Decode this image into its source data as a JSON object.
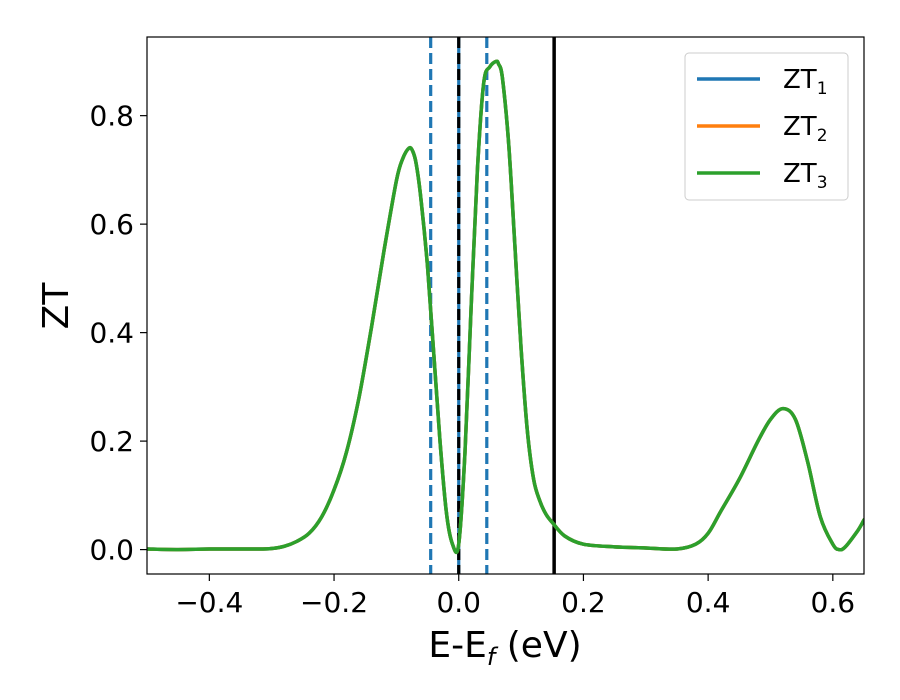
{
  "chart_data": {
    "type": "line",
    "title": "",
    "xlabel": {
      "base": "E-E",
      "sub": "f",
      "suffix": " (eV)"
    },
    "ylabel": "ZT",
    "xlim": [
      -0.5,
      0.65
    ],
    "ylim": [
      -0.045,
      0.945
    ],
    "xticks": [
      -0.4,
      -0.2,
      0.0,
      0.2,
      0.4,
      0.6
    ],
    "xtick_labels": [
      "−0.4",
      "−0.2",
      "0.0",
      "0.2",
      "0.4",
      "0.6"
    ],
    "yticks": [
      0.0,
      0.2,
      0.4,
      0.6,
      0.8
    ],
    "ytick_labels": [
      "0.0",
      "0.2",
      "0.4",
      "0.6",
      "0.8"
    ],
    "grid": false,
    "legend_position": "top-right",
    "x": [
      -0.5,
      -0.45,
      -0.4,
      -0.35,
      -0.32,
      -0.3,
      -0.28,
      -0.26,
      -0.24,
      -0.22,
      -0.2,
      -0.18,
      -0.16,
      -0.14,
      -0.12,
      -0.1,
      -0.09,
      -0.08,
      -0.074,
      -0.068,
      -0.06,
      -0.05,
      -0.04,
      -0.03,
      -0.02,
      -0.01,
      0.0,
      0.01,
      0.02,
      0.03,
      0.04,
      0.05,
      0.06,
      0.064,
      0.07,
      0.08,
      0.09,
      0.1,
      0.11,
      0.12,
      0.13,
      0.14,
      0.15,
      0.17,
      0.2,
      0.25,
      0.3,
      0.35,
      0.38,
      0.4,
      0.42,
      0.45,
      0.48,
      0.5,
      0.52,
      0.54,
      0.56,
      0.58,
      0.6,
      0.61,
      0.62,
      0.64,
      0.65
    ],
    "series": [
      {
        "name_base": "ZT",
        "name_sub": "1",
        "color": "#1f77b4",
        "values": [
          0.001,
          0.0,
          0.001,
          0.001,
          0.001,
          0.002,
          0.006,
          0.015,
          0.03,
          0.06,
          0.11,
          0.18,
          0.28,
          0.41,
          0.55,
          0.68,
          0.72,
          0.74,
          0.735,
          0.71,
          0.64,
          0.52,
          0.36,
          0.2,
          0.07,
          0.01,
          0.01,
          0.18,
          0.45,
          0.7,
          0.86,
          0.89,
          0.9,
          0.895,
          0.87,
          0.75,
          0.56,
          0.37,
          0.22,
          0.13,
          0.09,
          0.065,
          0.05,
          0.025,
          0.01,
          0.005,
          0.003,
          0.001,
          0.01,
          0.03,
          0.07,
          0.13,
          0.2,
          0.24,
          0.26,
          0.24,
          0.16,
          0.06,
          0.01,
          0.0,
          0.005,
          0.035,
          0.055
        ]
      },
      {
        "name_base": "ZT",
        "name_sub": "2",
        "color": "#ff7f0e",
        "values": [
          0.001,
          0.0,
          0.001,
          0.001,
          0.001,
          0.002,
          0.006,
          0.015,
          0.03,
          0.06,
          0.11,
          0.18,
          0.28,
          0.41,
          0.55,
          0.68,
          0.72,
          0.74,
          0.735,
          0.71,
          0.64,
          0.52,
          0.36,
          0.2,
          0.07,
          0.01,
          0.01,
          0.18,
          0.45,
          0.7,
          0.86,
          0.89,
          0.9,
          0.895,
          0.87,
          0.75,
          0.56,
          0.37,
          0.22,
          0.13,
          0.09,
          0.065,
          0.05,
          0.025,
          0.01,
          0.005,
          0.003,
          0.001,
          0.01,
          0.03,
          0.07,
          0.13,
          0.2,
          0.24,
          0.26,
          0.24,
          0.16,
          0.06,
          0.01,
          0.0,
          0.005,
          0.035,
          0.055
        ]
      },
      {
        "name_base": "ZT",
        "name_sub": "3",
        "color": "#2ca02c",
        "values": [
          0.001,
          0.0,
          0.001,
          0.001,
          0.001,
          0.002,
          0.006,
          0.015,
          0.03,
          0.06,
          0.11,
          0.18,
          0.28,
          0.41,
          0.55,
          0.68,
          0.72,
          0.74,
          0.735,
          0.71,
          0.64,
          0.52,
          0.36,
          0.2,
          0.07,
          0.01,
          0.01,
          0.18,
          0.45,
          0.7,
          0.86,
          0.89,
          0.9,
          0.895,
          0.87,
          0.75,
          0.56,
          0.37,
          0.22,
          0.13,
          0.09,
          0.065,
          0.05,
          0.025,
          0.01,
          0.005,
          0.003,
          0.001,
          0.01,
          0.03,
          0.07,
          0.13,
          0.2,
          0.24,
          0.26,
          0.24,
          0.16,
          0.06,
          0.01,
          0.0,
          0.005,
          0.035,
          0.055
        ]
      }
    ],
    "vlines": [
      {
        "x": -0.045,
        "color": "#1f77b4",
        "style": "dashed"
      },
      {
        "x": 0.0,
        "color": "#1f77b4",
        "style": "solid"
      },
      {
        "x": 0.0,
        "color": "#000000",
        "style": "dashed"
      },
      {
        "x": 0.045,
        "color": "#1f77b4",
        "style": "dashed"
      },
      {
        "x": 0.153,
        "color": "#000000",
        "style": "solid"
      }
    ]
  }
}
